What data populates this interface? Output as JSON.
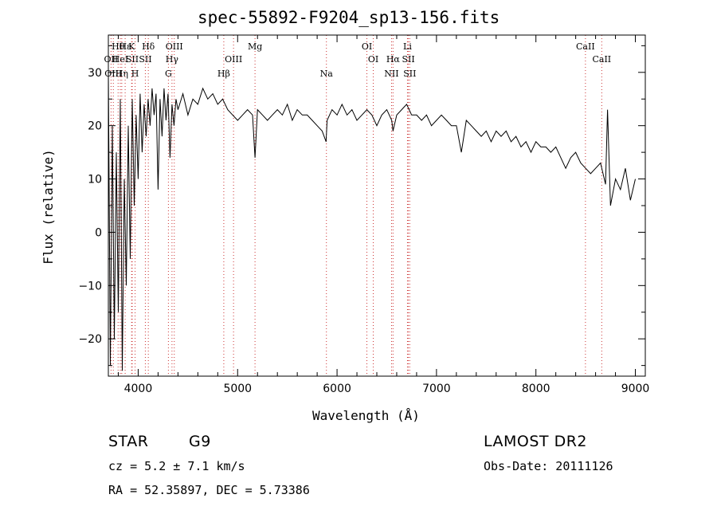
{
  "chart_data": {
    "type": "line",
    "title": "spec-55892-F9204_sp13-156.fits",
    "xlabel": "Wavelength (Å)",
    "ylabel": "Flux (relative)",
    "xlim": [
      3700,
      9100
    ],
    "ylim": [
      -27,
      37
    ],
    "x_ticks": [
      4000,
      5000,
      6000,
      7000,
      8000,
      9000
    ],
    "y_ticks": [
      -20,
      -10,
      0,
      10,
      20,
      30
    ],
    "grid": false,
    "line_color": "#000000",
    "marker_color": "#cc3333",
    "series": [
      {
        "x": [
          3700,
          3720,
          3740,
          3760,
          3780,
          3800,
          3820,
          3840,
          3860,
          3880,
          3900,
          3920,
          3940,
          3960,
          3980,
          4000,
          4020,
          4040,
          4060,
          4080,
          4100,
          4120,
          4140,
          4160,
          4180,
          4200,
          4220,
          4240,
          4260,
          4280,
          4300,
          4320,
          4340,
          4360,
          4380,
          4400,
          4450,
          4500,
          4550,
          4600,
          4650,
          4700,
          4750,
          4800,
          4850,
          4900,
          4950,
          5000,
          5050,
          5100,
          5150,
          5175,
          5200,
          5250,
          5300,
          5350,
          5400,
          5450,
          5500,
          5550,
          5600,
          5650,
          5700,
          5750,
          5800,
          5850,
          5890,
          5900,
          5950,
          6000,
          6050,
          6100,
          6150,
          6200,
          6250,
          6300,
          6350,
          6400,
          6450,
          6500,
          6550,
          6563,
          6600,
          6650,
          6700,
          6750,
          6800,
          6850,
          6900,
          6950,
          7000,
          7050,
          7100,
          7150,
          7200,
          7250,
          7300,
          7350,
          7400,
          7450,
          7500,
          7550,
          7600,
          7650,
          7700,
          7750,
          7800,
          7850,
          7900,
          7950,
          8000,
          8050,
          8100,
          8150,
          8200,
          8250,
          8300,
          8350,
          8400,
          8450,
          8500,
          8550,
          8600,
          8650,
          8700,
          8720,
          8750,
          8800,
          8850,
          8900,
          8950,
          9000
        ],
        "y": [
          30,
          -25,
          20,
          -20,
          15,
          -15,
          25,
          -26,
          10,
          -10,
          20,
          -5,
          25,
          5,
          22,
          10,
          26,
          15,
          24,
          18,
          25,
          20,
          27,
          22,
          26,
          8,
          25,
          18,
          27,
          21,
          26,
          14,
          24,
          20,
          25,
          23,
          26,
          22,
          25,
          24,
          27,
          25,
          26,
          24,
          25,
          23,
          22,
          21,
          22,
          23,
          22,
          14,
          23,
          22,
          21,
          22,
          23,
          22,
          24,
          21,
          23,
          22,
          22,
          21,
          20,
          19,
          17,
          21,
          23,
          22,
          24,
          22,
          23,
          21,
          22,
          23,
          22,
          20,
          22,
          23,
          21,
          19,
          22,
          23,
          24,
          22,
          22,
          21,
          22,
          20,
          21,
          22,
          21,
          20,
          20,
          15,
          21,
          20,
          19,
          18,
          19,
          17,
          19,
          18,
          19,
          17,
          18,
          16,
          17,
          15,
          17,
          16,
          16,
          15,
          16,
          14,
          12,
          14,
          15,
          13,
          12,
          11,
          12,
          13,
          9,
          23,
          5,
          10,
          8,
          12,
          6,
          10
        ]
      }
    ],
    "line_markers": [
      {
        "wl": 3727,
        "labels": [
          "OII"
        ],
        "row": 1
      },
      {
        "wl": 3750,
        "labels": [
          "OIII"
        ],
        "row": 2
      },
      {
        "wl": 3798,
        "labels": [
          "Hθ"
        ],
        "row": 0
      },
      {
        "wl": 3820,
        "labels": [
          "HeI"
        ],
        "row": 1
      },
      {
        "wl": 3835,
        "labels": [
          "Hη"
        ],
        "row": 2
      },
      {
        "wl": 3869,
        "labels": [
          "Hε"
        ],
        "row": 0
      },
      {
        "wl": 3934,
        "labels": [
          "K"
        ],
        "row": 0
      },
      {
        "wl": 3940,
        "labels": [
          "SII"
        ],
        "row": 1
      },
      {
        "wl": 3969,
        "labels": [
          "H"
        ],
        "row": 2
      },
      {
        "wl": 4102,
        "labels": [
          "Hδ"
        ],
        "row": 0
      },
      {
        "wl": 4072,
        "labels": [
          "SII"
        ],
        "row": 1
      },
      {
        "wl": 4304,
        "labels": [
          "G"
        ],
        "row": 2
      },
      {
        "wl": 4340,
        "labels": [
          "Hγ"
        ],
        "row": 1
      },
      {
        "wl": 4363,
        "labels": [
          "OIII"
        ],
        "row": 0
      },
      {
        "wl": 4861,
        "labels": [
          "Hβ"
        ],
        "row": 2
      },
      {
        "wl": 4959,
        "labels": [
          "OIII"
        ],
        "row": 1
      },
      {
        "wl": 5175,
        "labels": [
          "Mg"
        ],
        "row": 0
      },
      {
        "wl": 5893,
        "labels": [
          "Na"
        ],
        "row": 2
      },
      {
        "wl": 6300,
        "labels": [
          "OI"
        ],
        "row": 0
      },
      {
        "wl": 6364,
        "labels": [
          "OI"
        ],
        "row": 1
      },
      {
        "wl": 6548,
        "labels": [
          "NII"
        ],
        "row": 2
      },
      {
        "wl": 6563,
        "labels": [
          "Hα"
        ],
        "row": 1
      },
      {
        "wl": 6708,
        "labels": [
          "Li"
        ],
        "row": 0
      },
      {
        "wl": 6717,
        "labels": [
          "SII"
        ],
        "row": 1
      },
      {
        "wl": 6731,
        "labels": [
          "SII"
        ],
        "row": 2
      },
      {
        "wl": 8498,
        "labels": [
          "CaII"
        ],
        "row": 0
      },
      {
        "wl": 8662,
        "labels": [
          "CaII"
        ],
        "row": 1
      }
    ]
  },
  "info": {
    "class_label": "STAR",
    "subclass": "G9",
    "survey": "LAMOST DR2",
    "cz": "cz = 5.2 ± 7.1 km/s",
    "obs_date": "Obs-Date: 20111126",
    "coords": "RA =  52.35897, DEC =   5.73386"
  }
}
